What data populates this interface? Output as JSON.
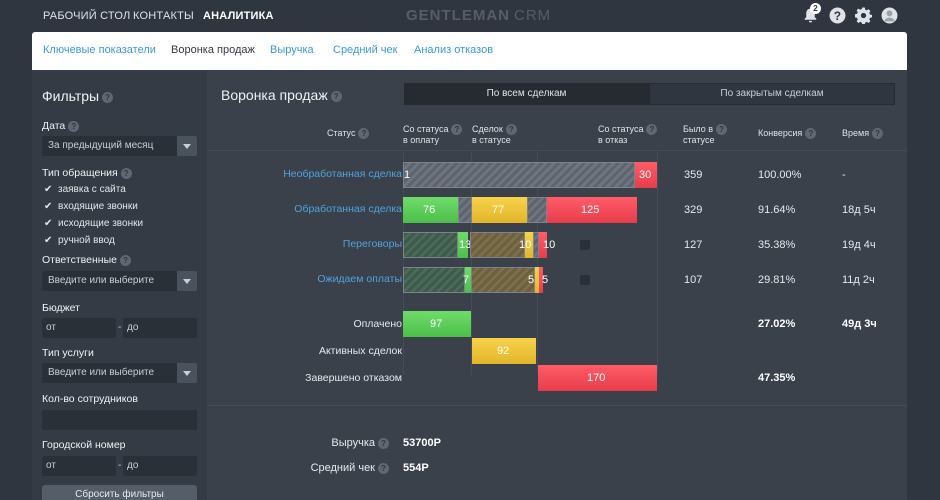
{
  "topnav": {
    "items": [
      "РАБОЧИЙ СТОЛ",
      "КОНТАКТЫ",
      "АНАЛИТИКА"
    ],
    "brand": "GENTLEMAN",
    "brand_suffix": "CRM",
    "notifications_count": "2"
  },
  "subtabs": [
    "Ключевые показатели",
    "Воронка продаж",
    "Выручка",
    "Средний чек",
    "Анализ отказов"
  ],
  "filters": {
    "title": "Фильтры",
    "date_label": "Дата",
    "date_value": "За предыдущий месяц",
    "request_type_label": "Тип обращения",
    "request_types": [
      "заявка с сайта",
      "входящие звонки",
      "исходящие звонки",
      "ручной ввод"
    ],
    "responsible_label": "Ответственные",
    "select_placeholder": "Введите или выберите",
    "budget_label": "Бюджет",
    "from": "от",
    "to": "до",
    "dash": "-",
    "service_type_label": "Тип услуги",
    "employees_label": "Кол-во сотрудников",
    "city_number_label": "Городской номер",
    "reset": "Сбросить фильтры"
  },
  "funnel": {
    "title": "Воронка продаж",
    "toggle": [
      "По всем сделкам",
      "По закрытым сделкам"
    ],
    "headers": {
      "status": "Статус",
      "to_payment": [
        "Со статуса",
        "в оплату"
      ],
      "in_status": [
        "Сделок",
        "в статусе"
      ],
      "to_reject": [
        "Со статуса",
        "в отказ"
      ],
      "was_in_status": [
        "Было в",
        "статусе"
      ],
      "conversion": "Конверсия",
      "time": "Время"
    },
    "rows": [
      {
        "label": "Необработанная сделка",
        "bars": [
          "1",
          "30"
        ],
        "was": "359",
        "conversion": "100.00%",
        "time": "-"
      },
      {
        "label": "Обработанная сделка",
        "bars": [
          "76",
          "77",
          "125"
        ],
        "was": "329",
        "conversion": "91.64%",
        "time": "18д 5ч"
      },
      {
        "label": "Переговоры",
        "bars": [
          "13",
          "10",
          "10"
        ],
        "was": "127",
        "conversion": "35.38%",
        "time": "19д 4ч"
      },
      {
        "label": "Ожидаем оплаты",
        "bars": [
          "7",
          "5",
          "5"
        ],
        "was": "107",
        "conversion": "29.81%",
        "time": "11д 2ч"
      }
    ],
    "totals": [
      {
        "label": "Оплачено",
        "value": "97",
        "conversion": "27.02%",
        "time": "49д 3ч"
      },
      {
        "label": "Активных сделок",
        "value": "92"
      },
      {
        "label": "Завершено отказом",
        "value": "170",
        "conversion": "47.35%"
      }
    ],
    "summary": [
      {
        "label": "Выручка",
        "value": "53700Р"
      },
      {
        "label": "Средний чек",
        "value": "554Р"
      }
    ]
  }
}
